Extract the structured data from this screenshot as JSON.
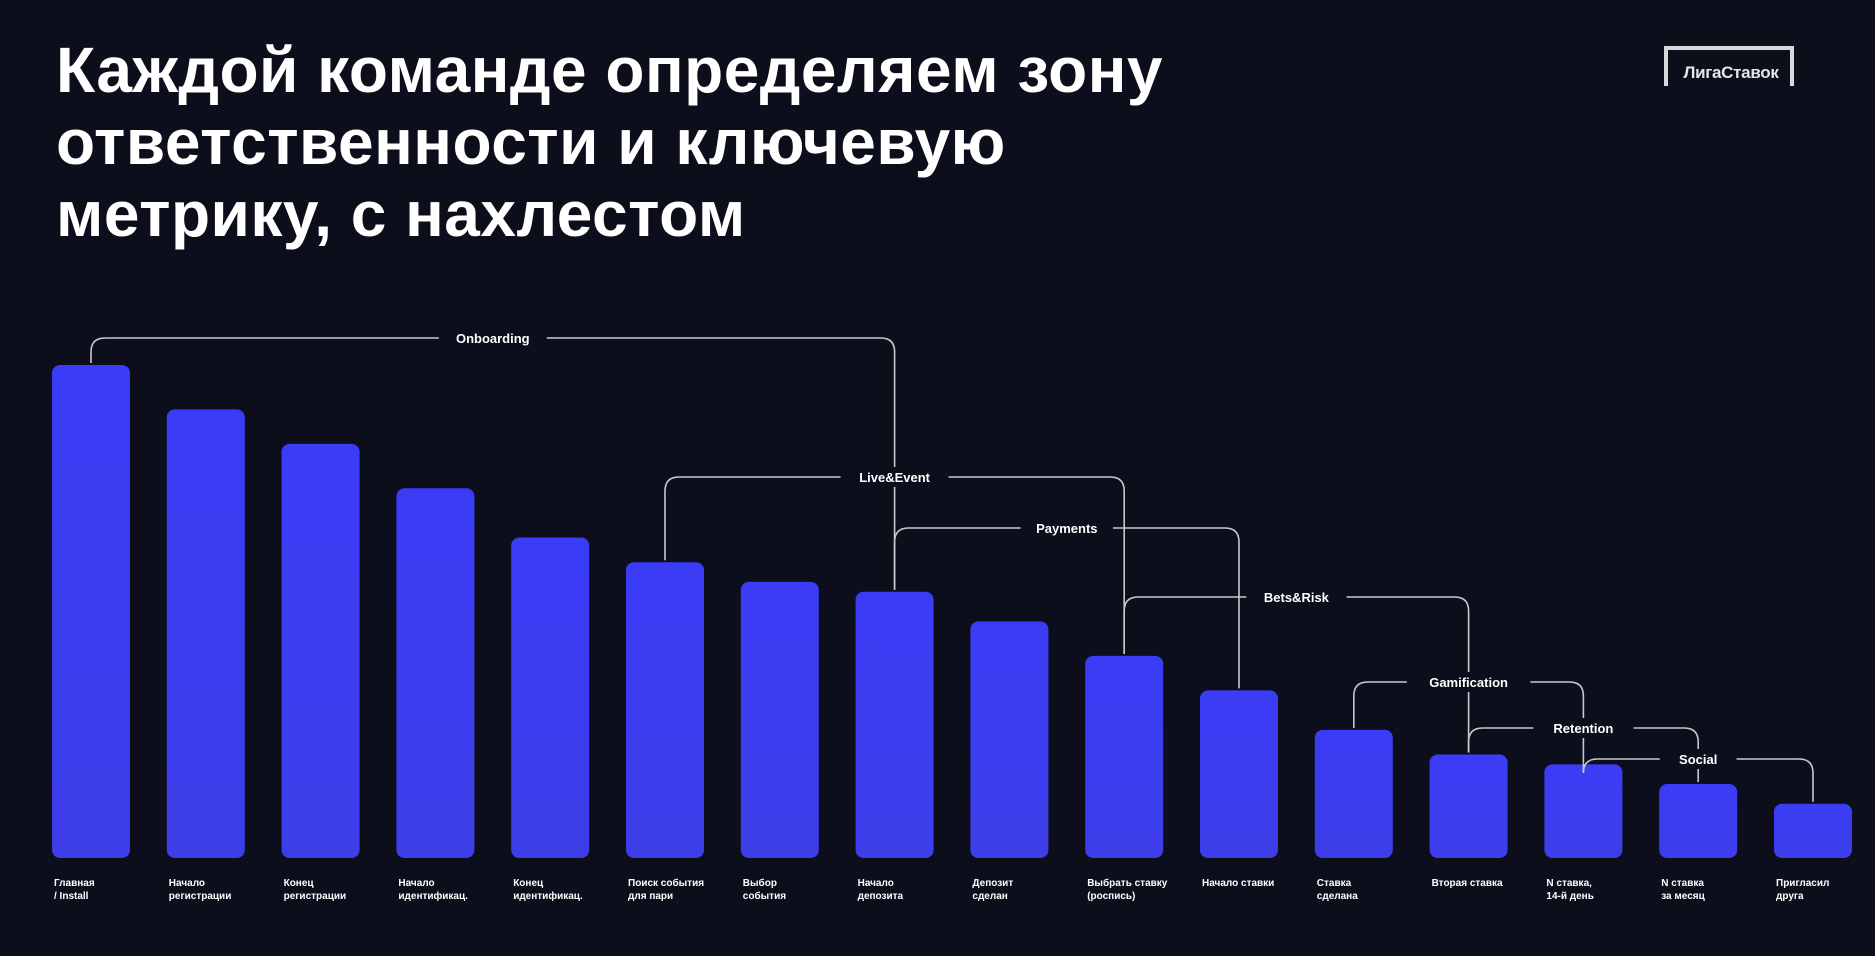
{
  "title_lines": [
    "Каждой команде определяем зону",
    "ответственности и ключевую",
    "метрику, с нахлестом"
  ],
  "logo": {
    "text": "ЛигаСтавок"
  },
  "colors": {
    "background": "#0c0e1c",
    "bar_top": "#3b3cf6",
    "bar_bottom": "#3d3ee8",
    "bracket": "#c8c8c8"
  },
  "chart_data": {
    "type": "bar",
    "categories": [
      [
        "Главная",
        "/ Install"
      ],
      [
        "Начало",
        "регистрации"
      ],
      [
        "Конец",
        "регистрации"
      ],
      [
        "Начало",
        "идентификац."
      ],
      [
        "Конец",
        "идентификац."
      ],
      [
        "Поиск события",
        "для пари"
      ],
      [
        "Выбор",
        "события"
      ],
      [
        "Начало",
        "депозита"
      ],
      [
        "Депозит",
        "сделан"
      ],
      [
        "Выбрать ставку",
        "(роспись)"
      ],
      [
        "Начало ставки"
      ],
      [
        "Ставка",
        "сделана"
      ],
      [
        "Вторая ставка"
      ],
      [
        "N ставка,",
        "14-й день"
      ],
      [
        "N ставка",
        "за месяц"
      ],
      [
        "Пригласил",
        "друга"
      ]
    ],
    "values": [
      100,
      91,
      84,
      75,
      65,
      60,
      56,
      54,
      48,
      41,
      34,
      26,
      21,
      19,
      15,
      11
    ],
    "ylim": [
      0,
      100
    ],
    "grid": false,
    "brackets": [
      {
        "label": "Onboarding",
        "from": 0,
        "to": 7
      },
      {
        "label": "Live&Event",
        "from": 5,
        "to": 9
      },
      {
        "label": "Payments",
        "from": 7,
        "to": 10
      },
      {
        "label": "Bets&Risk",
        "from": 9,
        "to": 12
      },
      {
        "label": "Gamification",
        "from": 11,
        "to": 13
      },
      {
        "label": "Retention",
        "from": 12,
        "to": 14
      },
      {
        "label": "Social",
        "from": 13,
        "to": 15
      }
    ]
  }
}
